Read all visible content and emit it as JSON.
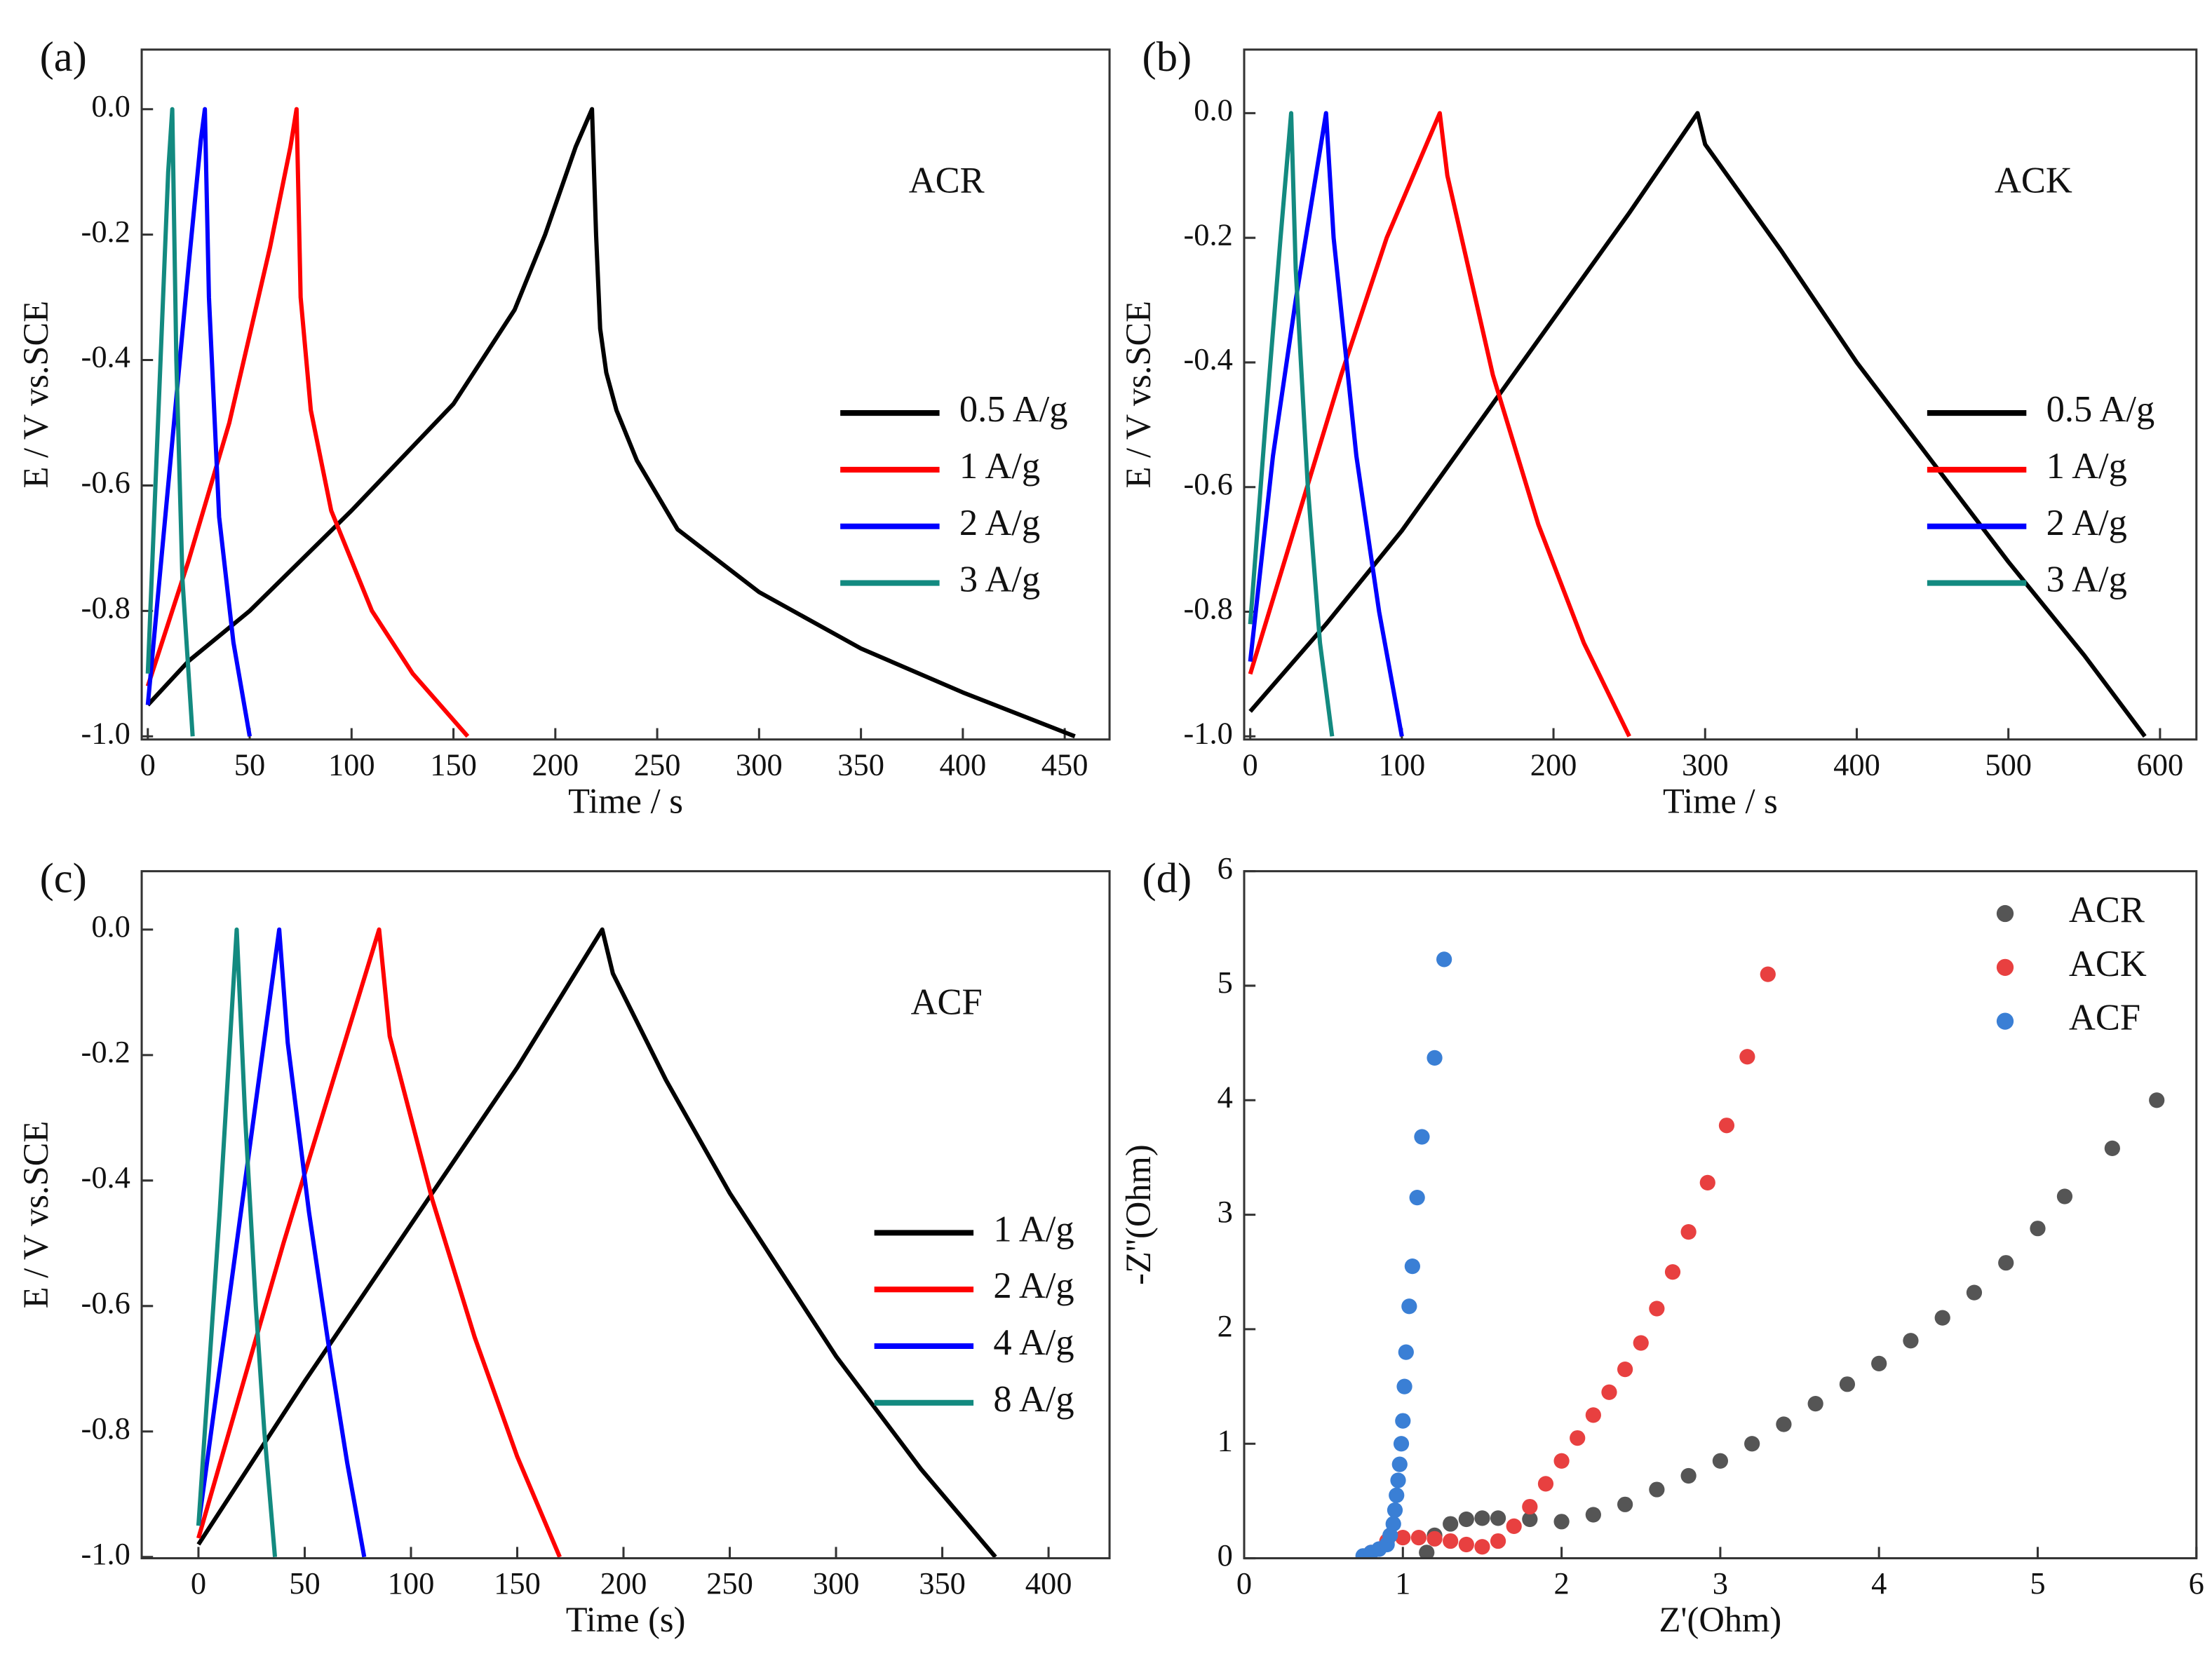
{
  "chart_data": [
    {
      "type": "line",
      "label": "(a)",
      "annotation": "ACR",
      "xlabel": "Time / s",
      "ylabel": "E / V vs.SCE",
      "xlim": [
        -3,
        472
      ],
      "ylim": [
        -1.005,
        0.095
      ],
      "xticks": [
        0,
        50,
        100,
        150,
        200,
        250,
        300,
        350,
        400,
        450
      ],
      "yticks": [
        {
          "value": 0,
          "label": "0.0"
        },
        -0.2,
        -0.4,
        -0.6,
        -0.8,
        {
          "value": -1,
          "label": "-1.0"
        }
      ],
      "legend": "center right",
      "series": [
        {
          "name": "0.5 A/g",
          "color": "#000000",
          "x": [
            0,
            20,
            50,
            100,
            150,
            180,
            195,
            210,
            218,
            220,
            222,
            225,
            230,
            240,
            260,
            300,
            350,
            400,
            455
          ],
          "values": [
            -0.95,
            -0.88,
            -0.8,
            -0.64,
            -0.47,
            -0.32,
            -0.2,
            -0.06,
            0,
            -0.2,
            -0.35,
            -0.42,
            -0.48,
            -0.56,
            -0.67,
            -0.77,
            -0.86,
            -0.93,
            -1.0
          ]
        },
        {
          "name": "1 A/g",
          "color": "#ff0000",
          "x": [
            0,
            20,
            40,
            60,
            70,
            73,
            75,
            80,
            90,
            110,
            130,
            157
          ],
          "values": [
            -0.92,
            -0.72,
            -0.5,
            -0.22,
            -0.06,
            0,
            -0.3,
            -0.48,
            -0.64,
            -0.8,
            -0.9,
            -1.0
          ]
        },
        {
          "name": "2 A/g",
          "color": "#0000ff",
          "x": [
            0,
            10,
            20,
            26,
            28,
            30,
            35,
            42,
            50
          ],
          "values": [
            -0.95,
            -0.6,
            -0.25,
            -0.05,
            0,
            -0.3,
            -0.65,
            -0.85,
            -1.0
          ]
        },
        {
          "name": "3 A/g",
          "color": "#138a80",
          "x": [
            0,
            5,
            10,
            12,
            14,
            17,
            22
          ],
          "values": [
            -0.9,
            -0.5,
            -0.1,
            0,
            -0.4,
            -0.75,
            -1.0
          ]
        }
      ]
    },
    {
      "type": "line",
      "label": "(b)",
      "annotation": "ACK",
      "xlabel": "Time / s",
      "ylabel": "E / V vs.SCE",
      "xlim": [
        -4,
        624
      ],
      "ylim": [
        -1.005,
        0.102
      ],
      "xticks": [
        0,
        100,
        200,
        300,
        400,
        500,
        600
      ],
      "yticks": [
        {
          "value": 0,
          "label": "0.0"
        },
        -0.2,
        -0.4,
        -0.6,
        -0.8,
        {
          "value": -1,
          "label": "-1.0"
        }
      ],
      "legend": "center right",
      "series": [
        {
          "name": "0.5 A/g",
          "color": "#000000",
          "x": [
            0,
            50,
            100,
            150,
            200,
            250,
            295,
            300,
            350,
            400,
            450,
            500,
            550,
            590
          ],
          "values": [
            -0.96,
            -0.82,
            -0.67,
            -0.5,
            -0.33,
            -0.16,
            0,
            -0.05,
            -0.22,
            -0.4,
            -0.56,
            -0.72,
            -0.87,
            -1.0
          ]
        },
        {
          "name": "1 A/g",
          "color": "#ff0000",
          "x": [
            0,
            30,
            60,
            90,
            125,
            130,
            160,
            190,
            220,
            250
          ],
          "values": [
            -0.9,
            -0.66,
            -0.42,
            -0.2,
            0,
            -0.1,
            -0.42,
            -0.66,
            -0.85,
            -1.0
          ]
        },
        {
          "name": "2 A/g",
          "color": "#0000ff",
          "x": [
            0,
            15,
            30,
            50,
            55,
            70,
            85,
            100
          ],
          "values": [
            -0.88,
            -0.55,
            -0.3,
            0,
            -0.2,
            -0.55,
            -0.8,
            -1.0
          ]
        },
        {
          "name": "3 A/g",
          "color": "#138a80",
          "x": [
            0,
            10,
            20,
            27,
            30,
            38,
            46,
            54
          ],
          "values": [
            -0.82,
            -0.5,
            -0.2,
            0,
            -0.25,
            -0.6,
            -0.85,
            -1.0
          ]
        }
      ]
    },
    {
      "type": "line",
      "label": "(c)",
      "annotation": "ACF",
      "xlabel": "Time (s)",
      "ylabel": "E / V vs.SCE",
      "xlim": [
        -26.7,
        428.7
      ],
      "ylim": [
        -1.002,
        0.093
      ],
      "xticks": [
        0,
        50,
        100,
        150,
        200,
        250,
        300,
        350,
        400
      ],
      "yticks": [
        {
          "value": 0,
          "label": "0.0"
        },
        -0.2,
        -0.4,
        -0.6,
        -0.8,
        {
          "value": -1,
          "label": "-1.0"
        }
      ],
      "legend": "lower right",
      "series": [
        {
          "name": "1 A/g",
          "color": "#000000",
          "x": [
            0,
            50,
            100,
            150,
            190,
            195,
            220,
            250,
            300,
            340,
            375
          ],
          "values": [
            -0.98,
            -0.72,
            -0.47,
            -0.22,
            0,
            -0.07,
            -0.24,
            -0.42,
            -0.68,
            -0.86,
            -1.0
          ]
        },
        {
          "name": "2 A/g",
          "color": "#ff0000",
          "x": [
            0,
            40,
            85,
            90,
            110,
            130,
            150,
            170
          ],
          "values": [
            -0.97,
            -0.5,
            0,
            -0.17,
            -0.43,
            -0.65,
            -0.84,
            -1.0
          ]
        },
        {
          "name": "4 A/g",
          "color": "#0000ff",
          "x": [
            0,
            20,
            38,
            42,
            52,
            62,
            70,
            78
          ],
          "values": [
            -0.95,
            -0.45,
            0,
            -0.18,
            -0.45,
            -0.68,
            -0.85,
            -1.0
          ]
        },
        {
          "name": "8 A/g",
          "color": "#138a80",
          "x": [
            0,
            10,
            18,
            22,
            27,
            31,
            36
          ],
          "values": [
            -0.95,
            -0.45,
            0,
            -0.3,
            -0.6,
            -0.8,
            -1.0
          ]
        }
      ]
    },
    {
      "type": "scatter",
      "label": "(d)",
      "xlabel": "Z'(Ohm)",
      "ylabel": "-Z''(Ohm)",
      "xlim": [
        0,
        6
      ],
      "ylim": [
        0,
        6
      ],
      "xticks": [
        0,
        1,
        2,
        3,
        4,
        5,
        6
      ],
      "yticks": [
        0,
        1,
        2,
        3,
        4,
        5,
        6
      ],
      "legend": "upper right",
      "series": [
        {
          "name": "ACR",
          "color": "#555555",
          "x": [
            1.15,
            1.2,
            1.3,
            1.4,
            1.5,
            1.6,
            1.8,
            2.0,
            2.2,
            2.4,
            2.6,
            2.8,
            3.0,
            3.2,
            3.4,
            3.6,
            3.8,
            4.0,
            4.2,
            4.4,
            4.6,
            4.8,
            5.0,
            5.17,
            5.47,
            5.75
          ],
          "values": [
            0.05,
            0.2,
            0.3,
            0.34,
            0.35,
            0.35,
            0.34,
            0.32,
            0.38,
            0.47,
            0.6,
            0.72,
            0.85,
            1.0,
            1.17,
            1.35,
            1.52,
            1.7,
            1.9,
            2.1,
            2.32,
            2.58,
            2.88,
            3.16,
            3.58,
            4.0
          ]
        },
        {
          "name": "ACK",
          "color": "#e84040",
          "x": [
            0.8,
            0.9,
            1.0,
            1.1,
            1.2,
            1.3,
            1.4,
            1.5,
            1.6,
            1.7,
            1.8,
            1.9,
            2.0,
            2.1,
            2.2,
            2.3,
            2.4,
            2.5,
            2.6,
            2.7,
            2.8,
            2.92,
            3.04,
            3.17,
            3.3
          ],
          "values": [
            0.05,
            0.15,
            0.18,
            0.18,
            0.17,
            0.15,
            0.12,
            0.1,
            0.15,
            0.28,
            0.45,
            0.65,
            0.85,
            1.05,
            1.25,
            1.45,
            1.65,
            1.88,
            2.18,
            2.5,
            2.85,
            3.28,
            3.78,
            4.38,
            5.1
          ]
        },
        {
          "name": "ACF",
          "color": "#3a7fd5",
          "x": [
            0.75,
            0.8,
            0.85,
            0.9,
            0.92,
            0.94,
            0.95,
            0.96,
            0.97,
            0.98,
            0.99,
            1.0,
            1.01,
            1.02,
            1.04,
            1.06,
            1.09,
            1.12,
            1.2,
            1.26
          ],
          "values": [
            0.02,
            0.05,
            0.08,
            0.12,
            0.2,
            0.3,
            0.42,
            0.55,
            0.68,
            0.82,
            1.0,
            1.2,
            1.5,
            1.8,
            2.2,
            2.55,
            3.15,
            3.68,
            4.37,
            5.23
          ]
        }
      ]
    }
  ]
}
